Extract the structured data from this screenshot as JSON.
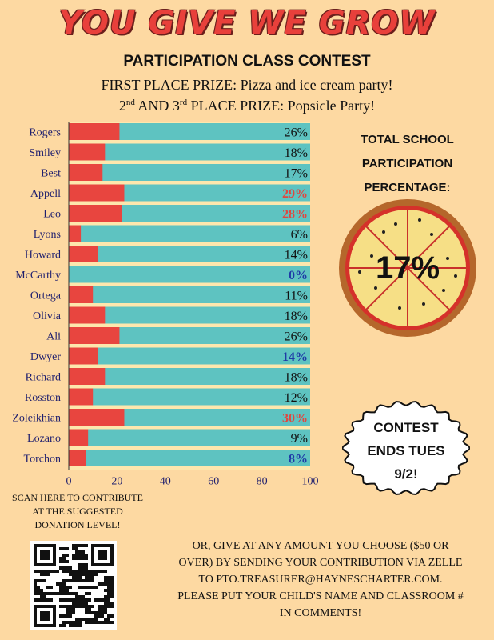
{
  "poster": {
    "title": "YOU GIVE WE GROW",
    "subtitle": "PARTICIPATION CLASS CONTEST",
    "first_prize": "FIRST PLACE PRIZE: Pizza and ice cream party!",
    "second_prize_lead": "2",
    "second_prize_sup1": "nd",
    "second_prize_mid": " AND 3",
    "second_prize_sup2": "rd",
    "second_prize_tail": " PLACE PRIZE: Popsicle Party!",
    "total_label_line1": "TOTAL SCHOOL",
    "total_label_line2": "PARTICIPATION",
    "total_label_line3": "PERCENTAGE:",
    "total_value": "17%",
    "badge_line1": "CONTEST",
    "badge_line2": "ENDS TUES",
    "badge_line3": "9/2!",
    "scan_text": "SCAN HERE TO CONTRIBUTE AT THE SUGGESTED DONATION LEVEL!",
    "give_text_line1": "OR, GIVE AT ANY AMOUNT YOU CHOOSE ($50 OR",
    "give_text_line2": "OVER) BY SENDING YOUR CONTRIBUTION VIA ZELLE",
    "give_text_line3": "TO PTO.TREASURER@HAYNESCHARTER.COM.",
    "give_text_line4": "PLEASE PUT YOUR CHILD'S NAME AND CLASSROOM #",
    "give_text_line5": "IN COMMENTS!"
  },
  "chart_data": {
    "type": "bar",
    "orientation": "horizontal",
    "stacked": true,
    "categories": [
      "Rogers",
      "Smiley",
      "Best",
      "Appell",
      "Leo",
      "Lyons",
      "Howard",
      "McCarthy",
      "Ortega",
      "Olivia",
      "Ali",
      "Dwyer",
      "Richard",
      "Rosston",
      "Zoleikhian",
      "Lozano",
      "Torchon"
    ],
    "values": [
      21,
      15,
      14,
      23,
      22,
      5,
      12,
      0,
      10,
      15,
      21,
      12,
      15,
      10,
      23,
      8,
      7
    ],
    "value_labels": [
      "26%",
      "18%",
      "17%",
      "29%",
      "28%",
      "6%",
      "14%",
      "0%",
      "11%",
      "18%",
      "26%",
      "14%",
      "18%",
      "12%",
      "30%",
      "9%",
      "8%"
    ],
    "label_colors": [
      "#111111",
      "#111111",
      "#111111",
      "#e0463f",
      "#e0463f",
      "#111111",
      "#111111",
      "#1f3aa6",
      "#111111",
      "#111111",
      "#111111",
      "#1f3aa6",
      "#111111",
      "#111111",
      "#e0463f",
      "#111111",
      "#1f3aa6"
    ],
    "xlim": [
      0,
      100
    ],
    "xticks": [
      "0",
      "20",
      "40",
      "60",
      "80",
      "100"
    ],
    "colors": {
      "progress": "#e8453f",
      "remaining": "#5ec3c1",
      "row_gap": "#fde7ad",
      "category_text": "#1f1f6e"
    },
    "grid": false
  }
}
